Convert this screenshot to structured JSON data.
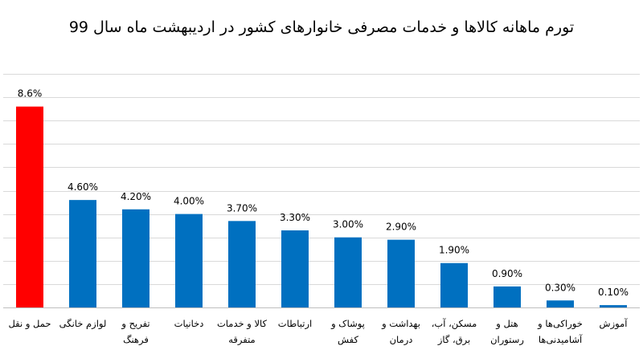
{
  "chart_data": {
    "type": "bar",
    "title": "تورم ماهانه کالاها و خدمات مصرفی خانوارهای کشور در اردیبهشت ماه سال 99",
    "categories": [
      [
        "حمل و نقل"
      ],
      [
        "لوازم خانگی"
      ],
      [
        "تفریح و",
        "فرهنگ"
      ],
      [
        "دخانیات"
      ],
      [
        "کالا و خدمات",
        "متفرقه"
      ],
      [
        "ارتباطات"
      ],
      [
        "پوشاک و",
        "کفش"
      ],
      [
        "بهداشت و",
        "درمان"
      ],
      [
        "مسکن، آب،",
        "برق، گاز"
      ],
      [
        "هتل و",
        "رستوران"
      ],
      [
        "خوراکی‌ها و",
        "آشامیدنی‌ها"
      ],
      [
        "آموزش"
      ]
    ],
    "values": [
      8.6,
      4.6,
      4.2,
      4.0,
      3.7,
      3.3,
      3.0,
      2.9,
      1.9,
      0.9,
      0.3,
      0.1
    ],
    "value_labels": [
      "8.6%",
      "4.60%",
      "4.20%",
      "4.00%",
      "3.70%",
      "3.30%",
      "3.00%",
      "2.90%",
      "1.90%",
      "0.90%",
      "0.30%",
      "0.10%"
    ],
    "colors": [
      "#ff0000",
      "#0070c0",
      "#0070c0",
      "#0070c0",
      "#0070c0",
      "#0070c0",
      "#0070c0",
      "#0070c0",
      "#0070c0",
      "#0070c0",
      "#0070c0",
      "#0070c0"
    ],
    "ylim": [
      0,
      10
    ],
    "y_gridline_step": 1,
    "grid": true,
    "legend": "none"
  }
}
